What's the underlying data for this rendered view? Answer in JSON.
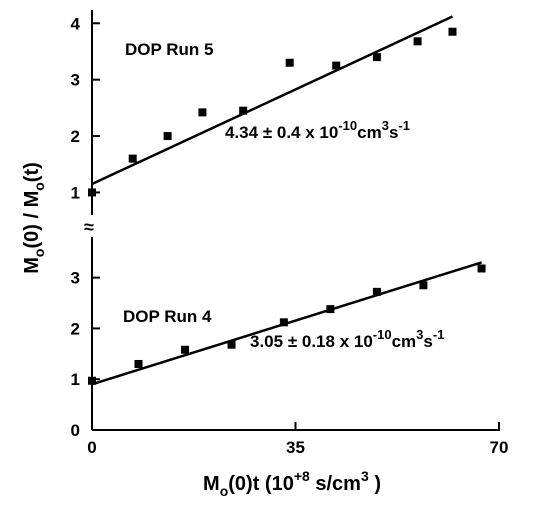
{
  "chart_data": [
    {
      "type": "scatter",
      "panel": "upper",
      "label": "DOP  Run  5",
      "fit_annotation": {
        "value": "4.34",
        "pm": "±",
        "err": "0.4",
        "times": "x",
        "mantissa": "10",
        "exponent": "-10",
        "unit1": "cm",
        "unit1_exp": "3",
        "unit2": "s",
        "unit2_exp": "-1"
      },
      "yticks": [
        "1",
        "2",
        "3",
        "4"
      ],
      "ylim": [
        0.6,
        4.2
      ],
      "x": [
        0,
        7,
        13,
        19,
        26,
        34,
        42,
        49,
        56,
        62
      ],
      "y": [
        1.0,
        1.6,
        2.0,
        2.42,
        2.45,
        3.3,
        3.25,
        3.4,
        3.68,
        3.85
      ],
      "fit": {
        "x0": 0,
        "y0": 1.15,
        "x1": 62,
        "y1": 4.12
      }
    },
    {
      "type": "scatter",
      "panel": "lower",
      "label": "DOP  Run  4",
      "fit_annotation": {
        "value": "3.05",
        "pm": "±",
        "err": "0.18",
        "times": "x",
        "mantissa": "10",
        "exponent": "-10",
        "unit1": "cm",
        "unit1_exp": "3",
        "unit2": "s",
        "unit2_exp": "-1"
      },
      "yticks": [
        "0",
        "1",
        "2",
        "3"
      ],
      "ylim": [
        0,
        3.8
      ],
      "x": [
        0,
        8,
        16,
        24,
        33,
        41,
        49,
        57,
        67
      ],
      "y": [
        0.97,
        1.3,
        1.58,
        1.68,
        2.12,
        2.38,
        2.72,
        2.85,
        3.18
      ],
      "fit": {
        "x0": 0,
        "y0": 0.9,
        "x1": 67,
        "y1": 3.3
      }
    }
  ],
  "x_axis": {
    "ticks": [
      "0",
      "35",
      "70"
    ],
    "tick_values": [
      0,
      35,
      70
    ],
    "xlim": [
      0,
      70
    ],
    "label": {
      "pre": "M",
      "sub": "o",
      "mid": "(0)t (10",
      "sup": "+8",
      "post": "s/cm",
      "sup2": "3",
      "end": ")"
    }
  },
  "y_axis": {
    "label": {
      "m1": "M",
      "s1": "o",
      "mid1": "(0)  /  M",
      "s2": "o",
      "end": "(t)"
    },
    "break_symbol": "≈"
  }
}
